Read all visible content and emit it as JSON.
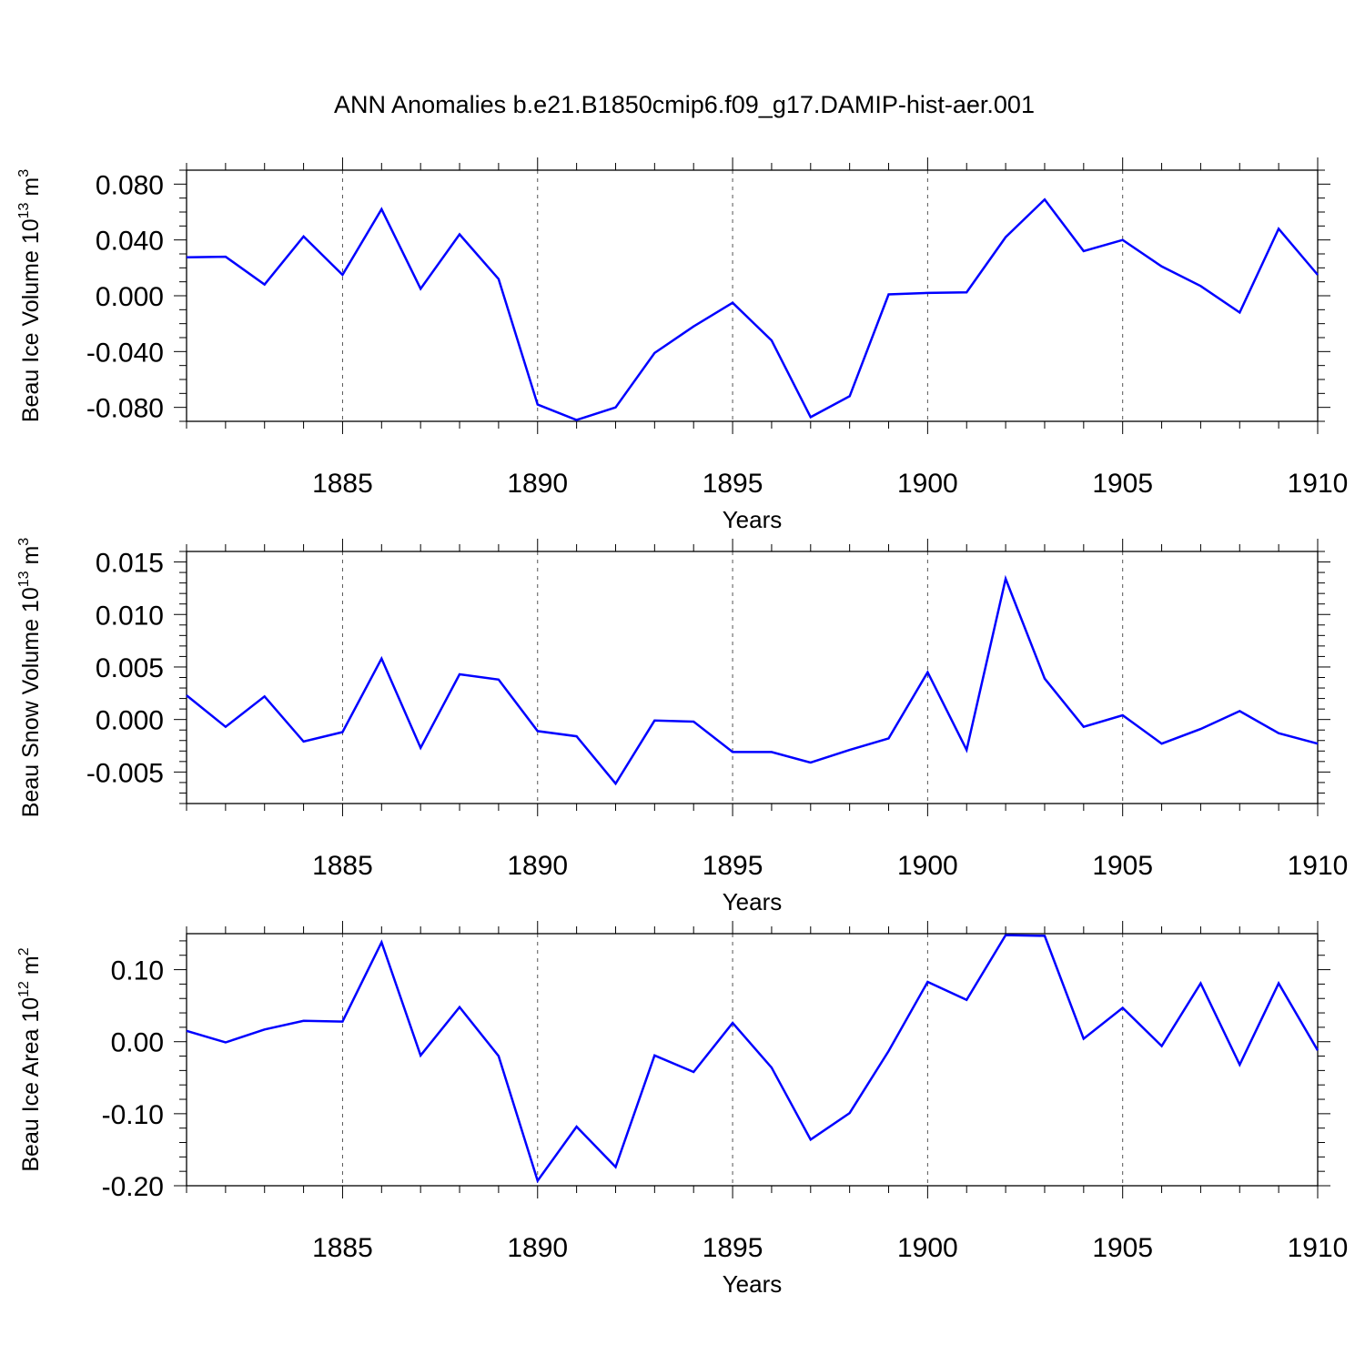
{
  "title": "ANN Anomalies b.e21.B1850cmip6.f09_g17.DAMIP-hist-aer.001",
  "line_color": "#0000ff",
  "chart_data": [
    {
      "type": "line",
      "ylabel_main": "Beau Ice Volume 10",
      "ylabel_exp": "13",
      "ylabel_unit": " m",
      "ylabel_unit_exp": "3",
      "xlabel": "Years",
      "xlim": [
        1881,
        1910
      ],
      "ylim": [
        -0.09,
        0.09
      ],
      "x_ticks": [
        1885,
        1890,
        1895,
        1900,
        1905,
        1910
      ],
      "x_tick_labels": [
        "1885",
        "1890",
        "1895",
        "1900",
        "1905",
        "1910"
      ],
      "y_ticks": [
        -0.08,
        -0.04,
        0.0,
        0.04,
        0.08
      ],
      "y_tick_labels": [
        "-0.080",
        "-0.040",
        "0.000",
        "0.040",
        "0.080"
      ],
      "y_minor_step": 0.01,
      "x": [
        1881,
        1882,
        1883,
        1884,
        1885,
        1886,
        1887,
        1888,
        1889,
        1890,
        1891,
        1892,
        1893,
        1894,
        1895,
        1896,
        1897,
        1898,
        1899,
        1900,
        1901,
        1902,
        1903,
        1904,
        1905,
        1906,
        1907,
        1908,
        1909,
        1910
      ],
      "values": [
        0.0275,
        0.028,
        0.008,
        0.0425,
        0.015,
        0.062,
        0.005,
        0.044,
        0.012,
        -0.078,
        -0.089,
        -0.08,
        -0.041,
        -0.022,
        -0.005,
        -0.032,
        -0.087,
        -0.072,
        0.001,
        0.002,
        0.0025,
        0.042,
        0.069,
        0.032,
        0.04,
        0.021,
        0.007,
        -0.012,
        0.048,
        0.015
      ]
    },
    {
      "type": "line",
      "ylabel_main": "Beau Snow Volume 10",
      "ylabel_exp": "13",
      "ylabel_unit": " m",
      "ylabel_unit_exp": "3",
      "xlabel": "Years",
      "xlim": [
        1881,
        1910
      ],
      "ylim": [
        -0.008,
        0.016
      ],
      "x_ticks": [
        1885,
        1890,
        1895,
        1900,
        1905,
        1910
      ],
      "x_tick_labels": [
        "1885",
        "1890",
        "1895",
        "1900",
        "1905",
        "1910"
      ],
      "y_ticks": [
        -0.005,
        0.0,
        0.005,
        0.01,
        0.015
      ],
      "y_tick_labels": [
        "-0.005",
        "0.000",
        "0.005",
        "0.010",
        "0.015"
      ],
      "y_minor_step": 0.001,
      "x": [
        1881,
        1882,
        1883,
        1884,
        1885,
        1886,
        1887,
        1888,
        1889,
        1890,
        1891,
        1892,
        1893,
        1894,
        1895,
        1896,
        1897,
        1898,
        1899,
        1900,
        1901,
        1902,
        1903,
        1904,
        1905,
        1906,
        1907,
        1908,
        1909,
        1910
      ],
      "values": [
        0.0023,
        -0.0007,
        0.0022,
        -0.0021,
        -0.0012,
        0.0058,
        -0.0027,
        0.0043,
        0.0038,
        -0.0011,
        -0.0016,
        -0.0061,
        -0.0001,
        -0.0002,
        -0.0031,
        -0.0031,
        -0.0041,
        -0.0029,
        -0.0018,
        0.0045,
        -0.0029,
        0.0134,
        0.0039,
        -0.0007,
        0.0004,
        -0.0023,
        -0.0009,
        0.0008,
        -0.0013,
        -0.0023
      ]
    },
    {
      "type": "line",
      "ylabel_main": "Beau Ice Area 10",
      "ylabel_exp": "12",
      "ylabel_unit": " m",
      "ylabel_unit_exp": "2",
      "xlabel": "Years",
      "xlim": [
        1881,
        1910
      ],
      "ylim": [
        -0.2,
        0.15
      ],
      "x_ticks": [
        1885,
        1890,
        1895,
        1900,
        1905,
        1910
      ],
      "x_tick_labels": [
        "1885",
        "1890",
        "1895",
        "1900",
        "1905",
        "1910"
      ],
      "y_ticks": [
        -0.2,
        -0.1,
        0.0,
        0.1
      ],
      "y_tick_labels": [
        "-0.20",
        "-0.10",
        "0.00",
        "0.10"
      ],
      "y_minor_step": 0.02,
      "x": [
        1881,
        1882,
        1883,
        1884,
        1885,
        1886,
        1887,
        1888,
        1889,
        1890,
        1891,
        1892,
        1893,
        1894,
        1895,
        1896,
        1897,
        1898,
        1899,
        1900,
        1901,
        1902,
        1903,
        1904,
        1905,
        1906,
        1907,
        1908,
        1909,
        1910
      ],
      "values": [
        0.015,
        -0.001,
        0.017,
        0.029,
        0.028,
        0.138,
        -0.019,
        0.048,
        -0.02,
        -0.193,
        -0.118,
        -0.174,
        -0.019,
        -0.042,
        0.026,
        -0.036,
        -0.136,
        -0.099,
        -0.013,
        0.083,
        0.058,
        0.148,
        0.147,
        0.004,
        0.047,
        -0.006,
        0.081,
        -0.032,
        0.081,
        -0.012
      ]
    }
  ]
}
